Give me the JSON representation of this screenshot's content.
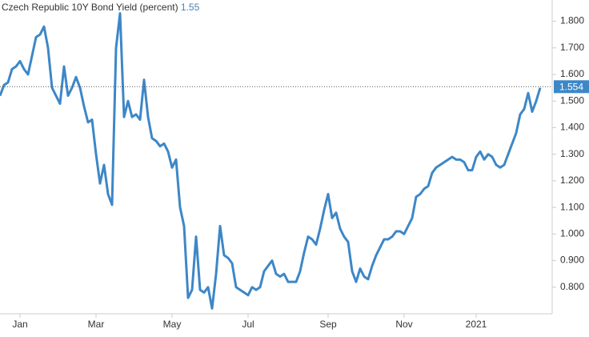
{
  "chart_data": {
    "type": "line",
    "title": "Czech Republic 10Y Bond Yield (percent)",
    "title_value": 1.55,
    "last_value_label": {
      "value": 1.554,
      "label": "1.554"
    },
    "categories": [
      null,
      null,
      null,
      null,
      null,
      "Jan",
      null,
      null,
      null,
      null,
      null,
      null,
      null,
      null,
      null,
      null,
      null,
      null,
      null,
      null,
      null,
      null,
      null,
      null,
      "Mar",
      null,
      null,
      null,
      null,
      null,
      null,
      null,
      null,
      null,
      null,
      null,
      null,
      null,
      null,
      null,
      null,
      null,
      null,
      "May",
      null,
      null,
      null,
      null,
      null,
      null,
      null,
      null,
      null,
      null,
      null,
      null,
      null,
      null,
      null,
      null,
      null,
      null,
      "Jul",
      null,
      null,
      null,
      null,
      null,
      null,
      null,
      null,
      null,
      null,
      null,
      null,
      null,
      null,
      null,
      null,
      null,
      null,
      null,
      "Sep",
      null,
      null,
      null,
      null,
      null,
      null,
      null,
      null,
      null,
      null,
      null,
      null,
      null,
      null,
      null,
      null,
      null,
      null,
      "Nov",
      null,
      null,
      null,
      null,
      null,
      null,
      null,
      null,
      null,
      null,
      null,
      null,
      null,
      null,
      null,
      null,
      null,
      "2021",
      null,
      null,
      null,
      null,
      null,
      null,
      null,
      null,
      null,
      null,
      null,
      null,
      null,
      null,
      null,
      null
    ],
    "series": [
      {
        "name": "Czech Republic 10Y Bond Yield",
        "color": "#3d87c7",
        "values": [
          1.52,
          1.56,
          1.57,
          1.62,
          1.63,
          1.65,
          1.62,
          1.6,
          1.67,
          1.74,
          1.75,
          1.78,
          1.7,
          1.55,
          1.52,
          1.49,
          1.63,
          1.52,
          1.55,
          1.59,
          1.55,
          1.48,
          1.42,
          1.43,
          1.3,
          1.19,
          1.26,
          1.15,
          1.11,
          1.7,
          1.83,
          1.44,
          1.5,
          1.44,
          1.45,
          1.43,
          1.58,
          1.44,
          1.36,
          1.35,
          1.33,
          1.34,
          1.31,
          1.25,
          1.28,
          1.1,
          1.03,
          0.76,
          0.79,
          0.99,
          0.79,
          0.78,
          0.8,
          0.72,
          0.85,
          1.03,
          0.92,
          0.91,
          0.89,
          0.8,
          0.79,
          0.78,
          0.77,
          0.8,
          0.79,
          0.8,
          0.86,
          0.88,
          0.9,
          0.85,
          0.84,
          0.85,
          0.82,
          0.82,
          0.82,
          0.86,
          0.93,
          0.99,
          0.98,
          0.96,
          1.02,
          1.09,
          1.15,
          1.06,
          1.08,
          1.02,
          0.99,
          0.97,
          0.86,
          0.82,
          0.87,
          0.84,
          0.83,
          0.88,
          0.92,
          0.95,
          0.98,
          0.98,
          0.99,
          1.01,
          1.01,
          1.0,
          1.03,
          1.06,
          1.14,
          1.15,
          1.17,
          1.18,
          1.23,
          1.25,
          1.26,
          1.27,
          1.28,
          1.29,
          1.28,
          1.28,
          1.27,
          1.24,
          1.24,
          1.29,
          1.31,
          1.28,
          1.3,
          1.29,
          1.26,
          1.25,
          1.26,
          1.3,
          1.34,
          1.38,
          1.45,
          1.47,
          1.53,
          1.46,
          1.5,
          1.55
        ]
      }
    ],
    "ylim": [
      0.7,
      1.88
    ],
    "yticks": [
      {
        "value": 0.8,
        "label": "0.800"
      },
      {
        "value": 0.9,
        "label": "0.900"
      },
      {
        "value": 1.0,
        "label": "1.000"
      },
      {
        "value": 1.1,
        "label": "1.100"
      },
      {
        "value": 1.2,
        "label": "1.200"
      },
      {
        "value": 1.3,
        "label": "1.300"
      },
      {
        "value": 1.4,
        "label": "1.400"
      },
      {
        "value": 1.5,
        "label": "1.500"
      },
      {
        "value": 1.6,
        "label": "1.600"
      },
      {
        "value": 1.7,
        "label": "1.700"
      },
      {
        "value": 1.8,
        "label": "1.800"
      }
    ],
    "grid": false
  }
}
